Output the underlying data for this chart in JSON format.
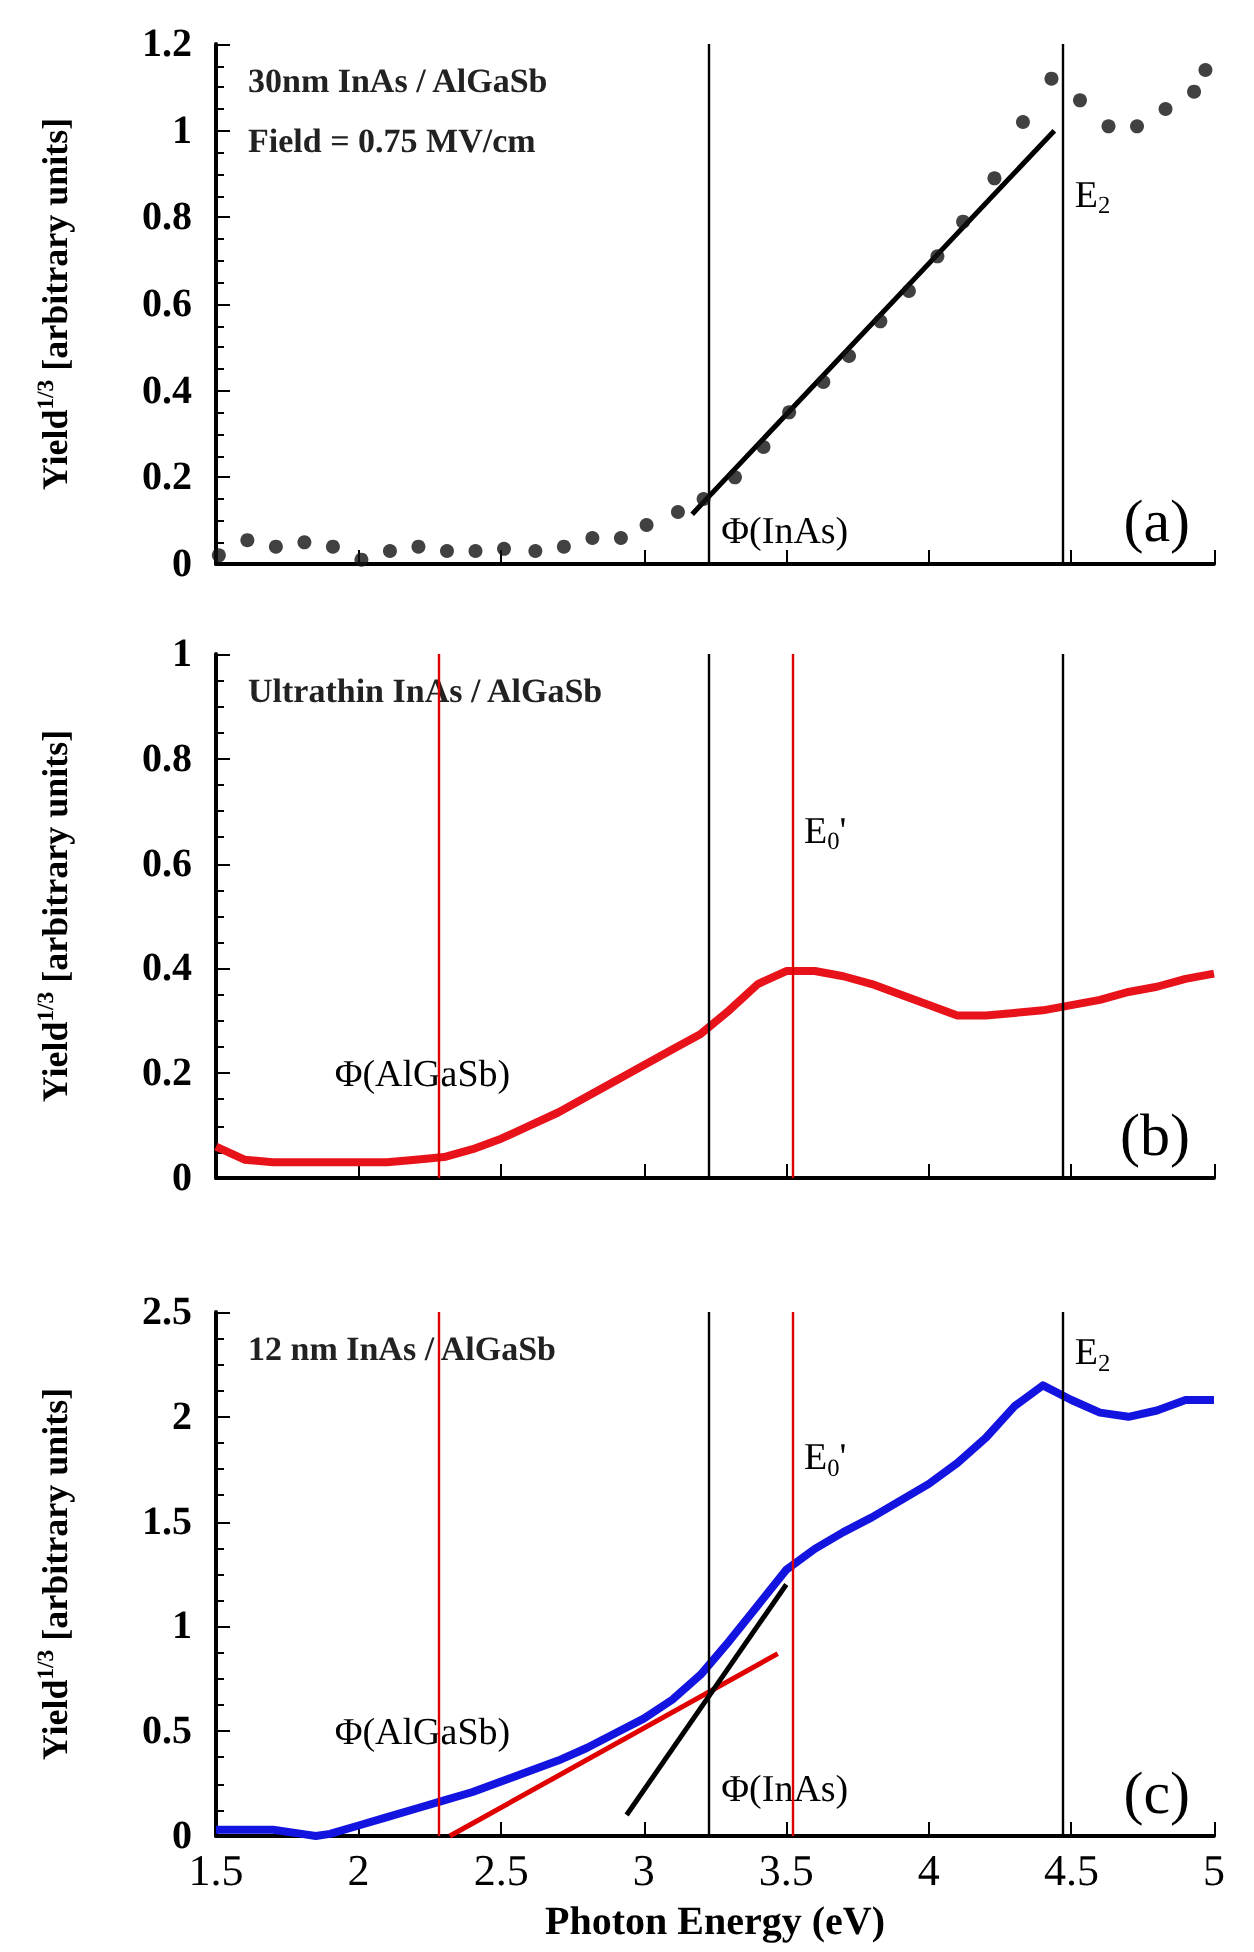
{
  "chart_data": [
    {
      "type": "scatter",
      "title": "(a)",
      "ylabel": "Yield$^{1/3}$ [arbitrary units]",
      "xlim": [
        1.5,
        5
      ],
      "xticks": [
        1.5,
        2,
        2.5,
        3,
        3.5,
        4,
        4.5,
        5
      ],
      "ylim": [
        0,
        1.2
      ],
      "yticks": [
        0,
        0.2,
        0.4,
        0.6,
        0.8,
        1,
        1.2
      ],
      "tick_labels": "y",
      "grid": false,
      "marker": "circle",
      "series": [
        {
          "color": "#111111",
          "x": [
            1.51,
            1.61,
            1.71,
            1.81,
            1.91,
            2.01,
            2.11,
            2.21,
            2.31,
            2.41,
            2.51,
            2.62,
            2.72,
            2.82,
            2.92,
            3.01,
            3.12,
            3.21,
            3.32,
            3.42,
            3.51,
            3.63,
            3.72,
            3.83,
            3.93,
            4.03,
            4.12,
            4.23,
            4.33,
            4.43,
            4.53,
            4.63,
            4.73,
            4.83,
            4.93,
            4.97
          ],
          "values": [
            0.02,
            0.055,
            0.04,
            0.05,
            0.04,
            0.01,
            0.03,
            0.04,
            0.03,
            0.03,
            0.035,
            0.03,
            0.04,
            0.06,
            0.06,
            0.09,
            0.12,
            0.15,
            0.2,
            0.27,
            0.35,
            0.42,
            0.48,
            0.56,
            0.63,
            0.71,
            0.79,
            0.89,
            1.02,
            1.12,
            1.07,
            1.01,
            1.01,
            1.05,
            1.09,
            1.14
          ]
        },
        {
          "type": "line",
          "marker": "none",
          "color": "#000000",
          "x": [
            3.17,
            4.44
          ],
          "values": [
            0.115,
            1.0
          ]
        }
      ],
      "ref_lines": [
        {
          "axis": "x",
          "value": 3.23,
          "label": null,
          "color": "#000000"
        },
        {
          "axis": "x",
          "value": 4.47,
          "label": null,
          "color": "#000000"
        }
      ],
      "annotations": [
        "30nm InAs / AlGaSb",
        "Field = 0.75 MV/cm",
        {
          "text": "Φ(InAs)",
          "x": 3.23,
          "y": 0.03
        },
        {
          "text": "E$_{2}$",
          "x": 4.47,
          "y": 0.8
        }
      ]
    },
    {
      "type": "line",
      "title": "(b)",
      "ylabel": "Yield$^{1/3}$ [arbitrary units]",
      "xlim": [
        1.5,
        5
      ],
      "xticks": [
        1.5,
        2,
        2.5,
        3,
        3.5,
        4,
        4.5,
        5
      ],
      "ylim": [
        0,
        1
      ],
      "yticks": [
        0,
        0.2,
        0.4,
        0.6,
        0.8,
        1
      ],
      "tick_labels": "y",
      "grid": false,
      "series": [
        {
          "color": "#e8121a",
          "x": [
            1.5,
            1.6,
            1.7,
            1.8,
            1.9,
            2.0,
            2.1,
            2.2,
            2.3,
            2.4,
            2.5,
            2.6,
            2.7,
            2.8,
            2.9,
            3.0,
            3.1,
            3.2,
            3.3,
            3.4,
            3.5,
            3.6,
            3.7,
            3.8,
            3.9,
            4.0,
            4.1,
            4.2,
            4.3,
            4.4,
            4.5,
            4.6,
            4.7,
            4.8,
            4.9,
            5.0
          ],
          "values": [
            0.06,
            0.035,
            0.03,
            0.03,
            0.03,
            0.03,
            0.03,
            0.035,
            0.04,
            0.055,
            0.075,
            0.1,
            0.125,
            0.155,
            0.185,
            0.215,
            0.245,
            0.275,
            0.32,
            0.37,
            0.395,
            0.395,
            0.385,
            0.37,
            0.35,
            0.33,
            0.31,
            0.31,
            0.315,
            0.32,
            0.33,
            0.34,
            0.355,
            0.365,
            0.38,
            0.39
          ]
        }
      ],
      "ref_lines": [
        {
          "axis": "x",
          "value": 3.23,
          "label": null,
          "color": "#000000"
        },
        {
          "axis": "x",
          "value": 4.47,
          "label": null,
          "color": "#000000"
        },
        {
          "axis": "x",
          "value": 2.28,
          "label": null,
          "color": "#e00000"
        },
        {
          "axis": "x",
          "value": 3.52,
          "label": null,
          "color": "#e00000"
        }
      ],
      "annotations": [
        "Ultrathin InAs / AlGaSb",
        {
          "text": "Φ(AlGaSb)",
          "x": 2.28,
          "y": 0.16
        },
        {
          "text": "E$_{0}$'",
          "x": 3.52,
          "y": 0.62
        }
      ]
    },
    {
      "type": "line",
      "title": "(c)",
      "xlabel": "Photon Energy (eV)",
      "ylabel": "Yield$^{1/3}$ [arbitrary units]",
      "xlim": [
        1.5,
        5
      ],
      "xticks": [
        1.5,
        2,
        2.5,
        3,
        3.5,
        4,
        4.5,
        5
      ],
      "ylim": [
        0,
        2.5
      ],
      "yticks": [
        0,
        0.5,
        1,
        1.5,
        2,
        2.5
      ],
      "grid": false,
      "series": [
        {
          "color": "#1414e0",
          "x": [
            1.5,
            1.6,
            1.7,
            1.8,
            1.85,
            1.9,
            2.0,
            2.1,
            2.2,
            2.3,
            2.4,
            2.5,
            2.6,
            2.7,
            2.8,
            2.9,
            3.0,
            3.1,
            3.2,
            3.3,
            3.4,
            3.5,
            3.6,
            3.7,
            3.8,
            3.9,
            4.0,
            4.1,
            4.2,
            4.3,
            4.4,
            4.5,
            4.6,
            4.7,
            4.8,
            4.9,
            5.0
          ],
          "values": [
            0.03,
            0.03,
            0.03,
            0.01,
            0.0,
            0.01,
            0.05,
            0.09,
            0.13,
            0.17,
            0.21,
            0.26,
            0.31,
            0.36,
            0.42,
            0.49,
            0.56,
            0.65,
            0.77,
            0.93,
            1.1,
            1.27,
            1.37,
            1.45,
            1.52,
            1.6,
            1.68,
            1.78,
            1.9,
            2.05,
            2.15,
            2.08,
            2.02,
            2.0,
            2.03,
            2.08,
            2.08
          ]
        },
        {
          "color": "#e00000",
          "x": [
            2.32,
            3.47
          ],
          "values": [
            0,
            0.87
          ]
        },
        {
          "color": "#000000",
          "x": [
            2.94,
            3.5
          ],
          "values": [
            0.1,
            1.2
          ]
        }
      ],
      "ref_lines": [
        {
          "axis": "x",
          "value": 3.23,
          "label": null,
          "color": "#000000"
        },
        {
          "axis": "x",
          "value": 4.47,
          "label": null,
          "color": "#000000"
        },
        {
          "axis": "x",
          "value": 2.28,
          "label": null,
          "color": "#e00000"
        },
        {
          "axis": "x",
          "value": 3.52,
          "label": null,
          "color": "#e00000"
        }
      ],
      "annotations": [
        "12 nm InAs / AlGaSb",
        {
          "text": "Φ(AlGaSb)",
          "x": 2.28,
          "y": 0.4
        },
        {
          "text": "E$_{0}$'",
          "x": 3.52,
          "y": 1.7
        },
        {
          "text": "E$_{2}$",
          "x": 4.47,
          "y": 2.2
        },
        {
          "text": "Φ(InAs)",
          "x": 3.23,
          "y": 0.13
        }
      ]
    }
  ]
}
